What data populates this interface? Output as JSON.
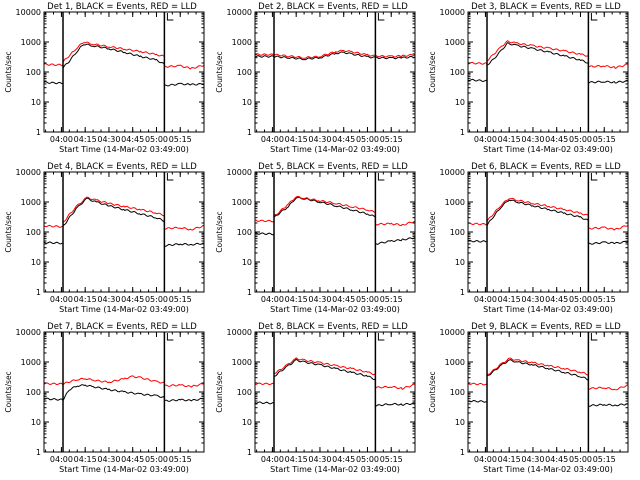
{
  "figure": {
    "background": "#ffffff",
    "axis_color": "#000000"
  },
  "chart_data": [
    {
      "type": "line",
      "title": "Det 1, BLACK = Events, RED = LLD",
      "xlabel": "Start Time (14-Mar-02 03:49:00)",
      "ylabel": "Counts/sec",
      "yscale": "log",
      "ylim": [
        1,
        10000
      ],
      "x_tick_labels": [
        "04:00",
        "04:15",
        "04:30",
        "04:45",
        "05:00",
        "05:15"
      ],
      "y_tick_labels": [
        "1",
        "10",
        "100",
        "1000",
        "10000"
      ],
      "grid": false,
      "legend": "in title",
      "marker_lines": [
        "04:01",
        "05:05"
      ],
      "xlim": [
        "03:49",
        "05:30"
      ],
      "series": [
        {
          "name": "BLACK = Events",
          "color": "#000000",
          "x": [
            "03:49",
            "04:01",
            "04:01",
            "04:05",
            "04:10",
            "04:14",
            "04:20",
            "04:30",
            "04:40",
            "04:50",
            "05:00",
            "05:05",
            "05:05",
            "05:15",
            "05:22",
            "05:30"
          ],
          "y": [
            45,
            42,
            140,
            230,
            500,
            850,
            750,
            600,
            450,
            330,
            250,
            180,
            35,
            40,
            38,
            40
          ]
        },
        {
          "name": "RED = LLD",
          "color": "#ff0000",
          "x": [
            "03:49",
            "04:01",
            "04:01",
            "04:05",
            "04:10",
            "04:14",
            "04:20",
            "04:30",
            "04:40",
            "04:50",
            "05:00",
            "05:05",
            "05:05",
            "05:15",
            "05:22",
            "05:30"
          ],
          "y": [
            180,
            170,
            220,
            350,
            650,
            1000,
            850,
            700,
            580,
            480,
            380,
            330,
            150,
            160,
            130,
            170
          ]
        }
      ]
    },
    {
      "type": "line",
      "title": "Det 2, BLACK = Events, RED = LLD",
      "xlabel": "Start Time (14-Mar-02 03:49:00)",
      "ylabel": "Counts/sec",
      "yscale": "log",
      "ylim": [
        1,
        10000
      ],
      "x_tick_labels": [
        "04:00",
        "04:15",
        "04:30",
        "04:45",
        "05:00",
        "05:15"
      ],
      "y_tick_labels": [
        "1",
        "10",
        "100",
        "1000",
        "10000"
      ],
      "grid": false,
      "legend": "in title",
      "marker_lines": [
        "04:01",
        "05:05"
      ],
      "xlim": [
        "03:49",
        "05:30"
      ],
      "series": [
        {
          "name": "BLACK = Events",
          "color": "#000000",
          "x": [
            "03:49",
            "04:01",
            "04:10",
            "04:20",
            "04:30",
            "04:40",
            "04:45",
            "04:50",
            "05:00",
            "05:05",
            "05:15",
            "05:22",
            "05:30"
          ],
          "y": [
            330,
            330,
            300,
            270,
            300,
            420,
            450,
            400,
            320,
            300,
            290,
            300,
            320
          ]
        },
        {
          "name": "RED = LLD",
          "color": "#ff0000",
          "x": [
            "03:49",
            "04:01",
            "04:10",
            "04:20",
            "04:30",
            "04:40",
            "04:45",
            "04:50",
            "05:00",
            "05:05",
            "05:15",
            "05:22",
            "05:30"
          ],
          "y": [
            380,
            380,
            340,
            300,
            330,
            480,
            520,
            470,
            370,
            340,
            330,
            340,
            380
          ]
        }
      ]
    },
    {
      "type": "line",
      "title": "Det 3, BLACK = Events, RED = LLD",
      "xlabel": "Start Time (14-Mar-02 03:49:00)",
      "ylabel": "Counts/sec",
      "yscale": "log",
      "ylim": [
        1,
        10000
      ],
      "x_tick_labels": [
        "04:00",
        "04:15",
        "04:30",
        "04:45",
        "05:00",
        "05:15"
      ],
      "y_tick_labels": [
        "1",
        "10",
        "100",
        "1000",
        "10000"
      ],
      "grid": false,
      "legend": "in title",
      "marker_lines": [
        "04:01",
        "05:05"
      ],
      "xlim": [
        "03:49",
        "05:30"
      ],
      "series": [
        {
          "name": "BLACK = Events",
          "color": "#000000",
          "x": [
            "03:49",
            "04:01",
            "04:01",
            "04:05",
            "04:10",
            "04:14",
            "04:20",
            "04:30",
            "04:40",
            "04:50",
            "05:00",
            "05:05",
            "05:05",
            "05:15",
            "05:22",
            "05:30"
          ],
          "y": [
            55,
            50,
            170,
            260,
            520,
            900,
            760,
            600,
            460,
            340,
            250,
            200,
            45,
            48,
            45,
            50
          ]
        },
        {
          "name": "RED = LLD",
          "color": "#ff0000",
          "x": [
            "03:49",
            "04:01",
            "04:01",
            "04:05",
            "04:10",
            "04:14",
            "04:20",
            "04:30",
            "04:40",
            "04:50",
            "05:00",
            "05:05",
            "05:05",
            "05:15",
            "05:22",
            "05:30"
          ],
          "y": [
            200,
            190,
            240,
            380,
            700,
            1050,
            900,
            750,
            620,
            500,
            390,
            340,
            150,
            160,
            140,
            180
          ]
        }
      ]
    },
    {
      "type": "line",
      "title": "Det 4, BLACK = Events, RED = LLD",
      "xlabel": "Start Time (14-Mar-02 03:49:00)",
      "ylabel": "Counts/sec",
      "yscale": "log",
      "ylim": [
        1,
        10000
      ],
      "x_tick_labels": [
        "04:00",
        "04:15",
        "04:30",
        "04:45",
        "05:00",
        "05:15"
      ],
      "y_tick_labels": [
        "1",
        "10",
        "100",
        "1000",
        "10000"
      ],
      "grid": false,
      "legend": "in title",
      "marker_lines": [
        "04:01",
        "05:05"
      ],
      "xlim": [
        "03:49",
        "05:30"
      ],
      "series": [
        {
          "name": "BLACK = Events",
          "color": "#000000",
          "x": [
            "03:49",
            "04:01",
            "04:01",
            "04:05",
            "04:10",
            "04:16",
            "04:22",
            "04:30",
            "04:40",
            "04:50",
            "05:00",
            "05:05",
            "05:05",
            "05:15",
            "05:22",
            "05:30"
          ],
          "y": [
            45,
            42,
            150,
            300,
            650,
            1300,
            1000,
            750,
            550,
            400,
            300,
            230,
            35,
            40,
            38,
            42
          ]
        },
        {
          "name": "RED = LLD",
          "color": "#ff0000",
          "x": [
            "03:49",
            "04:01",
            "04:01",
            "04:05",
            "04:10",
            "04:16",
            "04:22",
            "04:30",
            "04:40",
            "04:50",
            "05:00",
            "05:05",
            "05:05",
            "05:15",
            "05:22",
            "05:30"
          ],
          "y": [
            160,
            150,
            200,
            380,
            750,
            1400,
            1150,
            900,
            700,
            560,
            430,
            360,
            130,
            140,
            120,
            160
          ]
        }
      ]
    },
    {
      "type": "line",
      "title": "Det 5, BLACK = Events, RED = LLD",
      "xlabel": "Start Time (14-Mar-02 03:49:00)",
      "ylabel": "Counts/sec",
      "yscale": "log",
      "ylim": [
        1,
        10000
      ],
      "x_tick_labels": [
        "04:00",
        "04:15",
        "04:30",
        "04:45",
        "05:00",
        "05:15"
      ],
      "y_tick_labels": [
        "1",
        "10",
        "100",
        "1000",
        "10000"
      ],
      "grid": false,
      "legend": "in title",
      "marker_lines": [
        "04:01",
        "05:05"
      ],
      "xlim": [
        "03:49",
        "05:30"
      ],
      "series": [
        {
          "name": "BLACK = Events",
          "color": "#000000",
          "x": [
            "03:49",
            "04:01",
            "04:01",
            "04:05",
            "04:10",
            "04:15",
            "04:20",
            "04:30",
            "04:40",
            "04:50",
            "05:00",
            "05:05",
            "05:05",
            "05:15",
            "05:22",
            "05:30"
          ],
          "y": [
            90,
            85,
            300,
            450,
            700,
            1400,
            1300,
            1000,
            750,
            550,
            400,
            320,
            40,
            50,
            55,
            65
          ]
        },
        {
          "name": "RED = LLD",
          "color": "#ff0000",
          "x": [
            "03:49",
            "04:01",
            "04:01",
            "04:05",
            "04:10",
            "04:15",
            "04:20",
            "04:30",
            "04:40",
            "04:50",
            "05:00",
            "05:05",
            "05:05",
            "05:15",
            "05:22",
            "05:30"
          ],
          "y": [
            240,
            230,
            330,
            500,
            850,
            1500,
            1350,
            1100,
            900,
            700,
            550,
            450,
            180,
            190,
            170,
            230
          ]
        }
      ]
    },
    {
      "type": "line",
      "title": "Det 6, BLACK = Events, RED = LLD",
      "xlabel": "Start Time (14-Mar-02 03:49:00)",
      "ylabel": "Counts/sec",
      "yscale": "log",
      "ylim": [
        1,
        10000
      ],
      "x_tick_labels": [
        "04:00",
        "04:15",
        "04:30",
        "04:45",
        "05:00",
        "05:15"
      ],
      "y_tick_labels": [
        "1",
        "10",
        "100",
        "1000",
        "10000"
      ],
      "grid": false,
      "legend": "in title",
      "marker_lines": [
        "04:01",
        "05:05"
      ],
      "xlim": [
        "03:49",
        "05:30"
      ],
      "series": [
        {
          "name": "BLACK = Events",
          "color": "#000000",
          "x": [
            "03:49",
            "04:01",
            "04:01",
            "04:05",
            "04:10",
            "04:15",
            "04:20",
            "04:30",
            "04:40",
            "04:50",
            "05:00",
            "05:05",
            "05:05",
            "05:15",
            "05:22",
            "05:30"
          ],
          "y": [
            50,
            48,
            170,
            320,
            700,
            1200,
            1000,
            750,
            560,
            420,
            310,
            240,
            40,
            45,
            42,
            48
          ]
        },
        {
          "name": "RED = LLD",
          "color": "#ff0000",
          "x": [
            "03:49",
            "04:01",
            "04:01",
            "04:05",
            "04:10",
            "04:15",
            "04:20",
            "04:30",
            "04:40",
            "04:50",
            "05:00",
            "05:05",
            "05:05",
            "05:15",
            "05:22",
            "05:30"
          ],
          "y": [
            190,
            180,
            230,
            400,
            800,
            1350,
            1150,
            900,
            720,
            560,
            420,
            350,
            130,
            140,
            120,
            170
          ]
        }
      ]
    },
    {
      "type": "line",
      "title": "Det 7, BLACK = Events, RED = LLD",
      "xlabel": "Start Time (14-Mar-02 03:49:00)",
      "ylabel": "Counts/sec",
      "yscale": "log",
      "ylim": [
        1,
        10000
      ],
      "x_tick_labels": [
        "04:00",
        "04:15",
        "04:30",
        "04:45",
        "05:00",
        "05:15"
      ],
      "y_tick_labels": [
        "1",
        "10",
        "100",
        "1000",
        "10000"
      ],
      "grid": false,
      "legend": "in title",
      "marker_lines": [
        "04:01",
        "05:05"
      ],
      "xlim": [
        "03:49",
        "05:30"
      ],
      "series": [
        {
          "name": "BLACK = Events",
          "color": "#000000",
          "x": [
            "03:49",
            "04:01",
            "04:05",
            "04:10",
            "04:15",
            "04:20",
            "04:30",
            "04:40",
            "04:50",
            "05:00",
            "05:05",
            "05:05",
            "05:15",
            "05:22",
            "05:30"
          ],
          "y": [
            60,
            55,
            120,
            160,
            170,
            150,
            120,
            100,
            85,
            75,
            65,
            50,
            55,
            52,
            60
          ]
        },
        {
          "name": "RED = LLD",
          "color": "#ff0000",
          "x": [
            "03:49",
            "04:01",
            "04:05",
            "04:10",
            "04:15",
            "04:20",
            "04:30",
            "04:40",
            "04:45",
            "04:50",
            "05:00",
            "05:05",
            "05:05",
            "05:15",
            "05:22",
            "05:30"
          ],
          "y": [
            190,
            185,
            220,
            260,
            280,
            250,
            210,
            280,
            330,
            300,
            220,
            200,
            160,
            170,
            150,
            190
          ]
        }
      ]
    },
    {
      "type": "line",
      "title": "Det 8, BLACK = Events, RED = LLD",
      "xlabel": "Start Time (14-Mar-02 03:49:00)",
      "ylabel": "Counts/sec",
      "yscale": "log",
      "ylim": [
        1,
        10000
      ],
      "x_tick_labels": [
        "04:00",
        "04:15",
        "04:30",
        "04:45",
        "05:00",
        "05:15"
      ],
      "y_tick_labels": [
        "1",
        "10",
        "100",
        "1000",
        "10000"
      ],
      "grid": false,
      "legend": "in title",
      "marker_lines": [
        "04:01",
        "05:05"
      ],
      "xlim": [
        "03:49",
        "05:30"
      ],
      "series": [
        {
          "name": "BLACK = Events",
          "color": "#000000",
          "x": [
            "03:49",
            "04:01",
            "04:01",
            "04:05",
            "04:10",
            "04:15",
            "04:20",
            "04:30",
            "04:40",
            "04:50",
            "05:00",
            "05:05",
            "05:05",
            "05:15",
            "05:22",
            "05:30"
          ],
          "y": [
            45,
            42,
            330,
            480,
            750,
            1150,
            1000,
            800,
            600,
            450,
            340,
            260,
            35,
            40,
            38,
            42
          ]
        },
        {
          "name": "RED = LLD",
          "color": "#ff0000",
          "x": [
            "03:49",
            "04:01",
            "04:01",
            "04:05",
            "04:10",
            "04:15",
            "04:20",
            "04:30",
            "04:40",
            "04:50",
            "05:00",
            "05:05",
            "05:05",
            "05:15",
            "05:22",
            "05:30"
          ],
          "y": [
            190,
            185,
            420,
            550,
            850,
            1300,
            1150,
            950,
            750,
            600,
            460,
            380,
            140,
            150,
            130,
            180
          ]
        }
      ]
    },
    {
      "type": "line",
      "title": "Det 9, BLACK = Events, RED = LLD",
      "xlabel": "Start Time (14-Mar-02 03:49:00)",
      "ylabel": "Counts/sec",
      "yscale": "log",
      "ylim": [
        1,
        10000
      ],
      "x_tick_labels": [
        "04:00",
        "04:15",
        "04:30",
        "04:45",
        "05:00",
        "05:15"
      ],
      "y_tick_labels": [
        "1",
        "10",
        "100",
        "1000",
        "10000"
      ],
      "grid": false,
      "legend": "in title",
      "marker_lines": [
        "04:01",
        "05:05"
      ],
      "xlim": [
        "03:49",
        "05:30"
      ],
      "series": [
        {
          "name": "BLACK = Events",
          "color": "#000000",
          "x": [
            "03:49",
            "04:01",
            "04:01",
            "04:05",
            "04:10",
            "04:15",
            "04:20",
            "04:30",
            "04:40",
            "04:50",
            "05:00",
            "05:05",
            "05:05",
            "05:15",
            "05:22",
            "05:30"
          ],
          "y": [
            50,
            48,
            330,
            480,
            780,
            1150,
            1000,
            800,
            600,
            450,
            330,
            260,
            35,
            38,
            36,
            40
          ]
        },
        {
          "name": "RED = LLD",
          "color": "#ff0000",
          "x": [
            "03:49",
            "04:01",
            "04:01",
            "04:05",
            "04:10",
            "04:15",
            "04:20",
            "04:30",
            "04:40",
            "04:50",
            "05:00",
            "05:05",
            "05:05",
            "05:15",
            "05:22",
            "05:30"
          ],
          "y": [
            190,
            180,
            360,
            520,
            850,
            1300,
            1150,
            950,
            750,
            600,
            460,
            380,
            130,
            140,
            120,
            170
          ]
        }
      ]
    }
  ]
}
